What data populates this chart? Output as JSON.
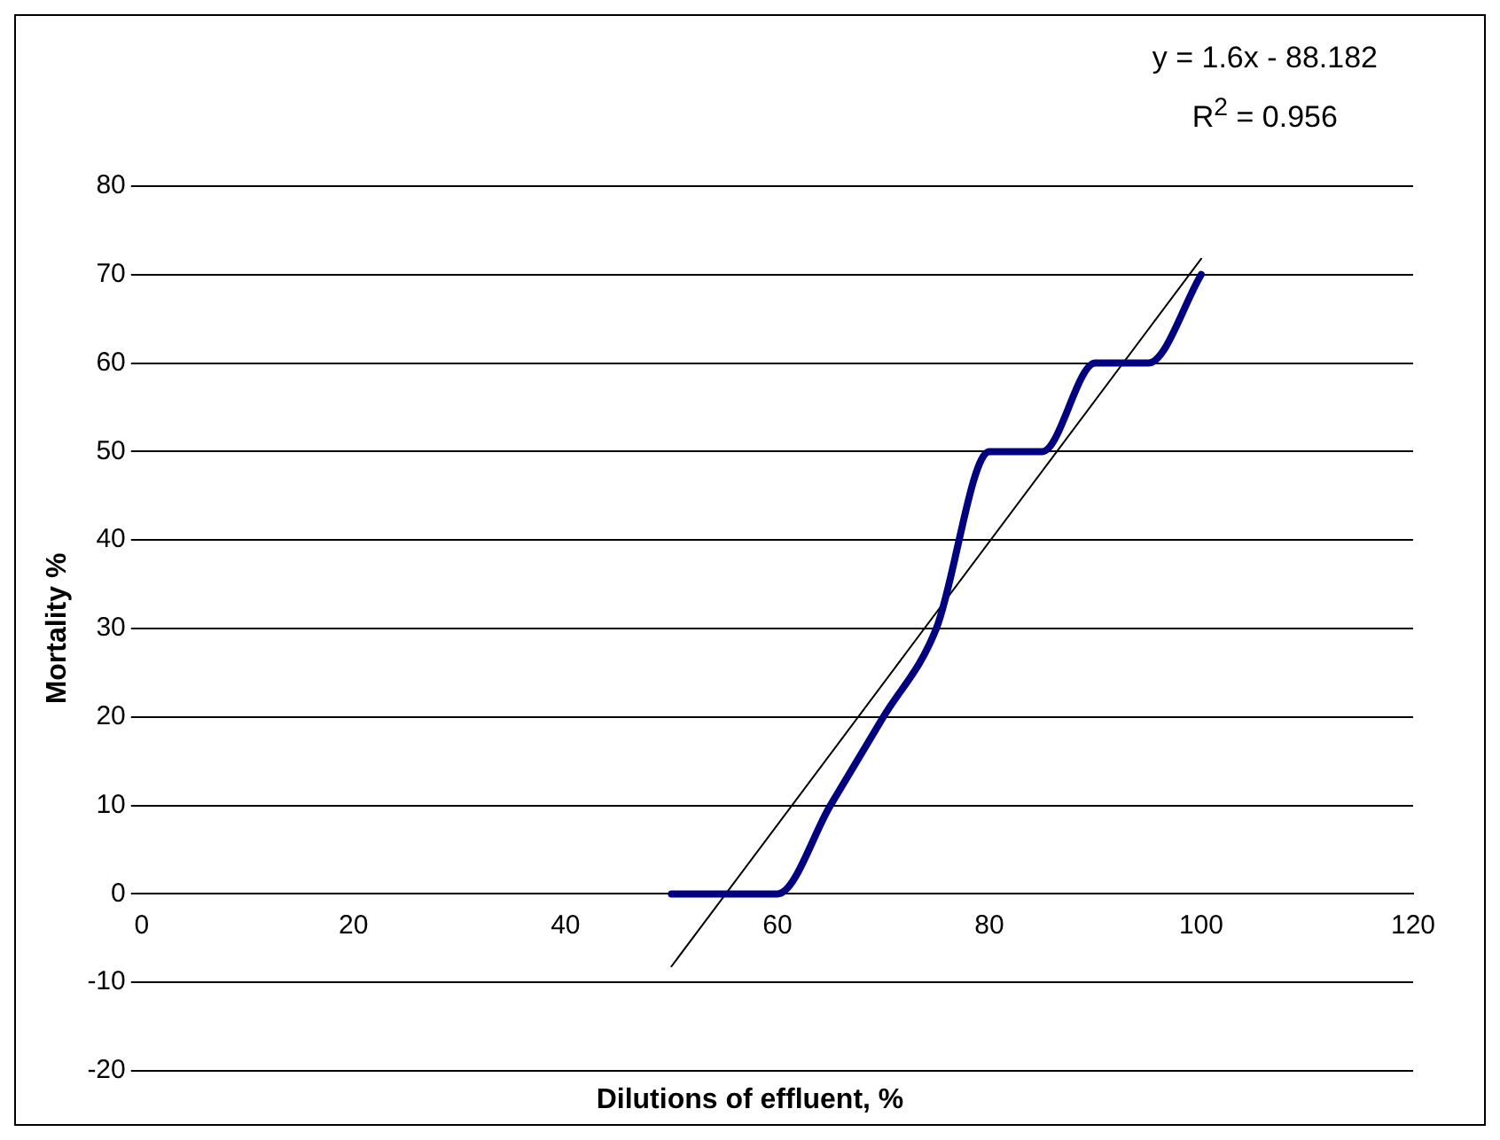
{
  "chart_data": {
    "type": "line",
    "xlabel": "Dilutions of effluent, %",
    "ylabel": "Mortality %",
    "annotations": [
      "y = 1.6x - 88.182",
      "R$^{2}$ = 0.956"
    ],
    "x": [
      50,
      55,
      60,
      65,
      70,
      75,
      80,
      85,
      90,
      95,
      100
    ],
    "series": [
      {
        "color": "#000080",
        "values": [
          0,
          0,
          0,
          10,
          20,
          30,
          50,
          50,
          60,
          60,
          70
        ]
      },
      {
        "type": "line",
        "color": "#000000",
        "x": [
          50,
          100
        ],
        "values": [
          -8.2,
          71.8
        ]
      }
    ],
    "xlim": [
      0,
      120
    ],
    "xticks": [
      0,
      20,
      40,
      60,
      80,
      100,
      120
    ],
    "ylim": [
      -20,
      80
    ],
    "yticks": [
      -20,
      -10,
      0,
      10,
      20,
      30,
      40,
      50,
      60,
      70,
      80
    ],
    "grid": "y",
    "legend": false,
    "marker": "none"
  }
}
